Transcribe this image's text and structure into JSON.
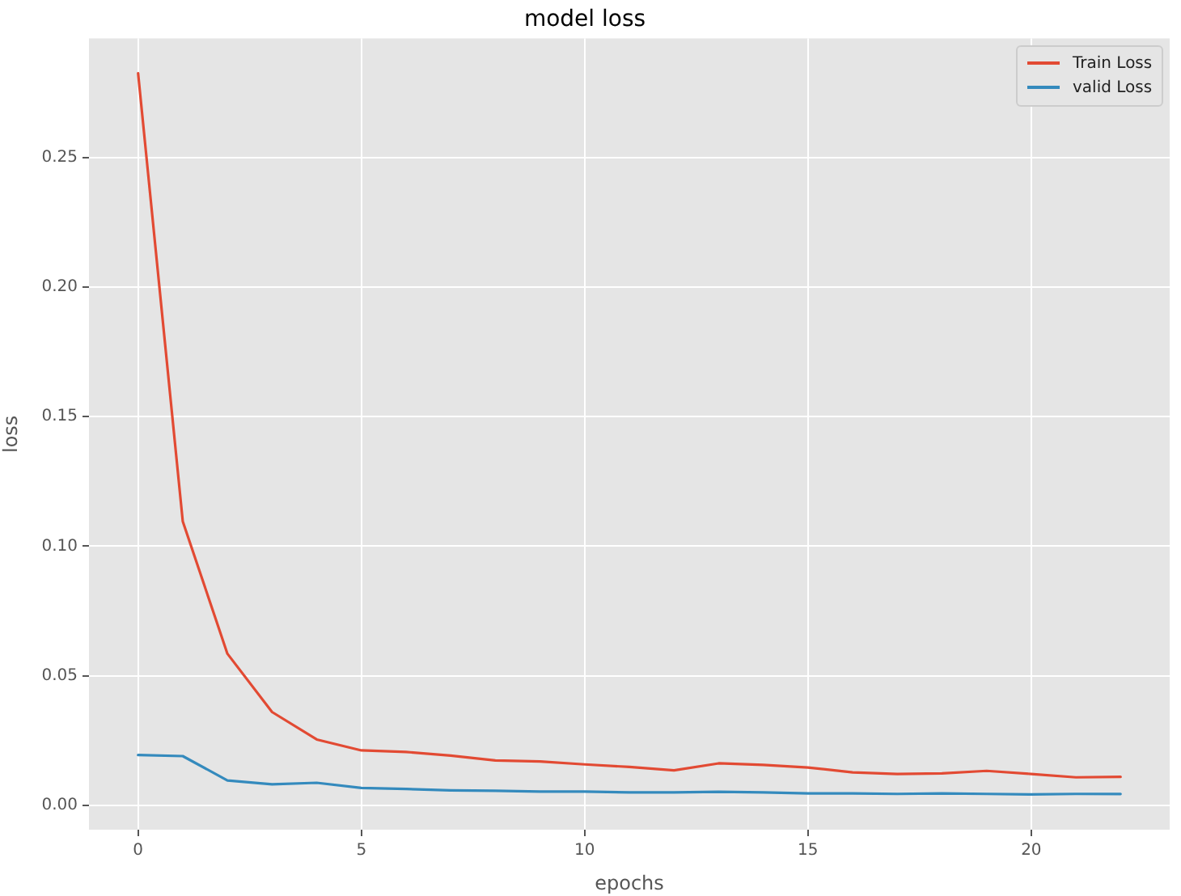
{
  "chart_data": {
    "type": "line",
    "title": "model loss",
    "xlabel": "epochs",
    "ylabel": "loss",
    "x": [
      0,
      1,
      2,
      3,
      4,
      5,
      6,
      7,
      8,
      9,
      10,
      11,
      12,
      13,
      14,
      15,
      16,
      17,
      18,
      19,
      20,
      21,
      22
    ],
    "series": [
      {
        "name": "Train Loss",
        "color": "#e24a33",
        "values": [
          0.2825,
          0.1096,
          0.0585,
          0.036,
          0.0254,
          0.0212,
          0.0206,
          0.0192,
          0.0173,
          0.0169,
          0.0158,
          0.0148,
          0.0135,
          0.0162,
          0.0156,
          0.0146,
          0.0127,
          0.0121,
          0.0123,
          0.0133,
          0.0121,
          0.0108,
          0.011
        ]
      },
      {
        "name": "valid Loss",
        "color": "#348abd",
        "values": [
          0.0194,
          0.019,
          0.0096,
          0.0081,
          0.0087,
          0.0067,
          0.0063,
          0.0058,
          0.0056,
          0.0053,
          0.0053,
          0.005,
          0.005,
          0.0052,
          0.005,
          0.0046,
          0.0046,
          0.0044,
          0.0046,
          0.0044,
          0.0042,
          0.0044,
          0.0044
        ]
      }
    ],
    "xlim": [
      -1.1,
      23.1
    ],
    "xticks": [
      0,
      5,
      10,
      15,
      20
    ],
    "ylim": [
      -0.0094,
      0.2959
    ],
    "yticks": [
      {
        "value": 0,
        "label": "0.00"
      },
      {
        "value": 0.05,
        "label": "0.05"
      },
      {
        "value": 0.1,
        "label": "0.10"
      },
      {
        "value": 0.15,
        "label": "0.15"
      },
      {
        "value": 0.2,
        "label": "0.20"
      },
      {
        "value": 0.25,
        "label": "0.25"
      }
    ],
    "grid": true,
    "legend": "top right"
  }
}
